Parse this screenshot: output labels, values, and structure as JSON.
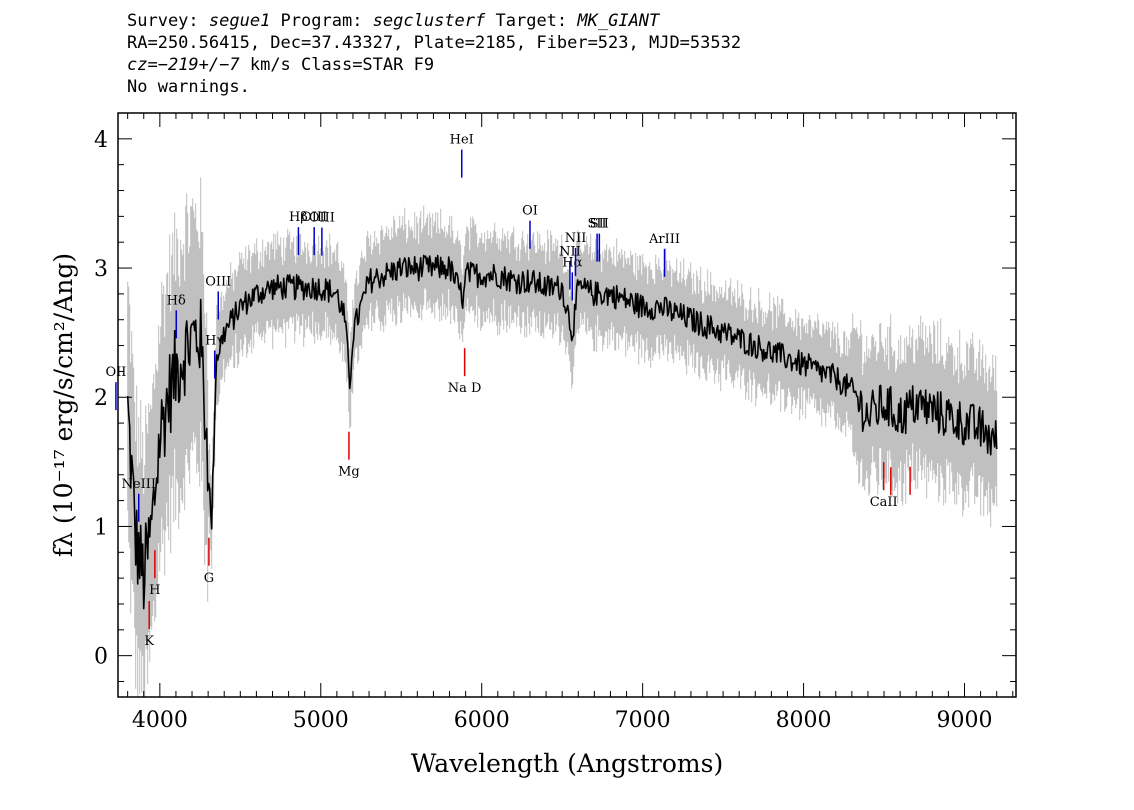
{
  "header": {
    "line1": {
      "survey_label": "Survey: ",
      "survey": "segue1",
      "program_label": " Program: ",
      "program": "segclusterf",
      "target_label": " Target: ",
      "target": "MK_GIANT"
    },
    "line2": "RA=250.56415, Dec=37.43327, Plate=2185, Fiber=523, MJD=53532",
    "line3": {
      "cz_label": "cz",
      "cz_value": "=−219+/−7",
      "rest": " km/s Class=STAR F9"
    },
    "line4": "No warnings."
  },
  "colors": {
    "flux": "#000000",
    "error_band": "#c0c0c0",
    "emission_line": "#0000cc",
    "absorption_line": "#dd0000"
  },
  "chart_data": {
    "type": "line",
    "title": "",
    "xlabel": "Wavelength (Angstroms)",
    "ylabel": "fλ (10⁻¹⁷ erg/s/cm²/Ang)",
    "xlim": [
      3740,
      9320
    ],
    "ylim": [
      -0.32,
      4.2
    ],
    "xticks": [
      4000,
      5000,
      6000,
      7000,
      8000,
      9000
    ],
    "yticks": [
      0,
      1,
      2,
      3,
      4
    ],
    "grid": false,
    "series": [
      {
        "x": [
          3800,
          3850,
          3900,
          3950,
          4000,
          4050,
          4100,
          4150,
          4200,
          4250,
          4300,
          4320,
          4350,
          4400,
          4500,
          4600,
          4700,
          4800,
          4900,
          5000,
          5100,
          5150,
          5180,
          5200,
          5300,
          5400,
          5500,
          5600,
          5700,
          5800,
          5890,
          5900,
          6000,
          6100,
          6200,
          6300,
          6400,
          6500,
          6563,
          6600,
          6700,
          6800,
          6900,
          7000,
          7100,
          7200,
          7300,
          7400,
          7500,
          7600,
          7700,
          7800,
          7900,
          8000,
          8100,
          8200,
          8300,
          8400,
          8500,
          8600,
          8700,
          8800,
          8900,
          9000,
          9100,
          9200
        ],
        "y": [
          1.9,
          0.9,
          0.6,
          1.0,
          1.7,
          2.0,
          2.2,
          2.35,
          2.45,
          2.5,
          1.5,
          0.95,
          2.3,
          2.5,
          2.7,
          2.8,
          2.85,
          2.85,
          2.85,
          2.85,
          2.8,
          2.6,
          2.1,
          2.5,
          2.9,
          2.95,
          3.0,
          3.0,
          3.0,
          3.0,
          2.75,
          2.95,
          2.95,
          2.95,
          2.9,
          2.9,
          2.85,
          2.85,
          2.5,
          2.85,
          2.8,
          2.8,
          2.75,
          2.7,
          2.7,
          2.65,
          2.6,
          2.55,
          2.5,
          2.45,
          2.4,
          2.35,
          2.3,
          2.25,
          2.2,
          2.15,
          2.05,
          1.85,
          1.95,
          1.85,
          1.95,
          1.9,
          1.85,
          1.8,
          1.75,
          1.65
        ]
      }
    ],
    "emission_lines": [
      {
        "label": "OII",
        "wavelength": 3727
      },
      {
        "label": "NeIII",
        "wavelength": 3869
      },
      {
        "label": "Hδ",
        "wavelength": 4102
      },
      {
        "label": "Hγ",
        "wavelength": 4341
      },
      {
        "label": "OIII",
        "wavelength": 4363
      },
      {
        "label": "Hβ",
        "wavelength": 4861
      },
      {
        "label": "OIII",
        "wavelength": 4959
      },
      {
        "label": "OIII",
        "wavelength": 5007
      },
      {
        "label": "HeI",
        "wavelength": 5876
      },
      {
        "label": "OI",
        "wavelength": 6300
      },
      {
        "label": "NII",
        "wavelength": 6548
      },
      {
        "label": "Hα",
        "wavelength": 6563
      },
      {
        "label": "NII",
        "wavelength": 6583
      },
      {
        "label": "SII",
        "wavelength": 6717
      },
      {
        "label": "SII",
        "wavelength": 6731
      },
      {
        "label": "ArIII",
        "wavelength": 7136
      }
    ],
    "absorption_lines": [
      {
        "label": "K",
        "wavelength": 3934
      },
      {
        "label": "H",
        "wavelength": 3969
      },
      {
        "label": "G",
        "wavelength": 4305
      },
      {
        "label": "Mg",
        "wavelength": 5175
      },
      {
        "label": "Na D",
        "wavelength": 5894
      },
      {
        "label": "CaII",
        "wavelength": 8498
      },
      {
        "label": "CaII",
        "wavelength": 8542
      },
      {
        "label": "CaII",
        "wavelength": 8662
      }
    ]
  }
}
